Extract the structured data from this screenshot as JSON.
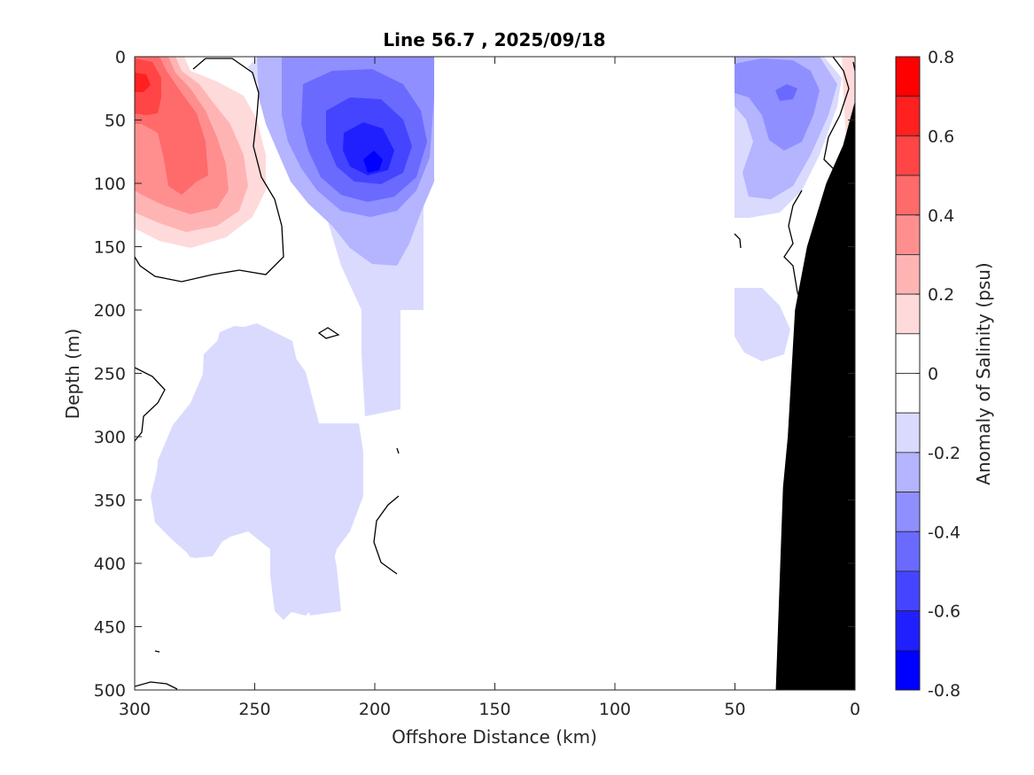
{
  "chart_data": {
    "type": "heatmap",
    "title": "Line 56.7 , 2025/09/18",
    "xlabel": "Offshore Distance (km)",
    "ylabel": "Depth (m)",
    "colorbar_label": "Anomaly of Salinity (psu)",
    "xlim": [
      300,
      0
    ],
    "ylim": [
      0,
      500
    ],
    "x_ticks": [
      300,
      250,
      200,
      150,
      100,
      50,
      0
    ],
    "y_ticks": [
      0,
      50,
      100,
      150,
      200,
      250,
      300,
      350,
      400,
      450,
      500
    ],
    "colorbar": {
      "range": [
        -0.8,
        0.8
      ],
      "ticks": [
        0.8,
        0.6,
        0.4,
        0.2,
        0,
        -0.2,
        -0.4,
        -0.6,
        -0.8
      ],
      "levels": [
        {
          "from": 0.7,
          "to": 0.8,
          "color": "#ff0000"
        },
        {
          "from": 0.6,
          "to": 0.7,
          "color": "#ff2020"
        },
        {
          "from": 0.5,
          "to": 0.6,
          "color": "#ff4545"
        },
        {
          "from": 0.4,
          "to": 0.5,
          "color": "#ff6a6a"
        },
        {
          "from": 0.3,
          "to": 0.4,
          "color": "#ff8f8f"
        },
        {
          "from": 0.2,
          "to": 0.3,
          "color": "#ffb4b4"
        },
        {
          "from": 0.1,
          "to": 0.2,
          "color": "#ffdada"
        },
        {
          "from": 0.0,
          "to": 0.1,
          "color": "#ffffff"
        },
        {
          "from": -0.1,
          "to": 0.0,
          "color": "#ffffff"
        },
        {
          "from": -0.2,
          "to": -0.1,
          "color": "#dadaff"
        },
        {
          "from": -0.3,
          "to": -0.2,
          "color": "#b4b4ff"
        },
        {
          "from": -0.4,
          "to": -0.3,
          "color": "#8f8fff"
        },
        {
          "from": -0.5,
          "to": -0.4,
          "color": "#6a6aff"
        },
        {
          "from": -0.6,
          "to": -0.5,
          "color": "#4545ff"
        },
        {
          "from": -0.7,
          "to": -0.6,
          "color": "#2020ff"
        },
        {
          "from": -0.8,
          "to": -0.7,
          "color": "#0000ff"
        }
      ]
    },
    "anomaly_features": [
      {
        "description": "positive salinity anomaly core",
        "distance_km": 295,
        "depth_m": 30,
        "value": 0.6
      },
      {
        "description": "positive salinity anomaly lobe",
        "distance_km": 280,
        "depth_m": 80,
        "value": 0.4
      },
      {
        "description": "negative salinity anomaly core",
        "distance_km": 200,
        "depth_m": 80,
        "value": -0.7
      },
      {
        "description": "negative salinity anomaly",
        "distance_km": 25,
        "depth_m": 30,
        "value": -0.3
      },
      {
        "description": "weak negative anomaly",
        "distance_km": 240,
        "depth_m": 320,
        "value": -0.15
      }
    ],
    "bathymetry": {
      "color": "#000000",
      "profile": [
        {
          "distance_km": 0,
          "depth_m": 35
        },
        {
          "distance_km": 5,
          "depth_m": 70
        },
        {
          "distance_km": 12,
          "depth_m": 100
        },
        {
          "distance_km": 20,
          "depth_m": 150
        },
        {
          "distance_km": 25,
          "depth_m": 200
        },
        {
          "distance_km": 28,
          "depth_m": 300
        },
        {
          "distance_km": 30,
          "depth_m": 340
        },
        {
          "distance_km": 33,
          "depth_m": 500
        }
      ]
    }
  }
}
